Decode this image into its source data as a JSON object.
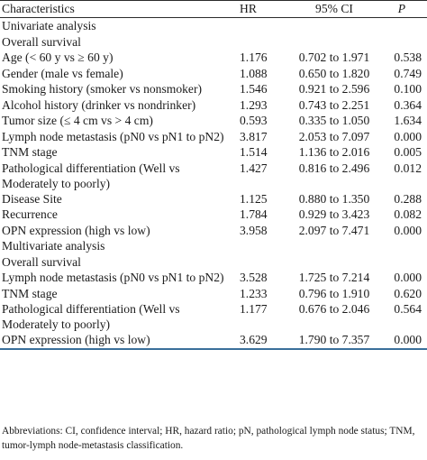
{
  "header": {
    "characteristics": "Characteristics",
    "hr": "HR",
    "ci": "95% CI",
    "p": "P"
  },
  "univariate": {
    "title": "Univariate analysis",
    "subtitle": "Overall survival",
    "rows": [
      {
        "label": "Age (< 60 y vs ≥ 60 y)",
        "hr": "1.176",
        "ci": "0.702 to 1.971",
        "p": "0.538"
      },
      {
        "label": "Gender (male vs female)",
        "hr": "1.088",
        "ci": "0.650 to 1.820",
        "p": "0.749"
      },
      {
        "label": "Smoking history (smoker vs nonsmoker)",
        "hr": "1.546",
        "ci": "0.921 to 2.596",
        "p": "0.100"
      },
      {
        "label": "Alcohol history (drinker vs nondrinker)",
        "hr": "1.293",
        "ci": "0.743 to 2.251",
        "p": "0.364"
      },
      {
        "label": "Tumor size (≤ 4 cm vs > 4 cm)",
        "hr": "0.593",
        "ci": "0.335 to 1.050",
        "p": "1.634"
      },
      {
        "label": "Lymph node metastasis (pN0 vs pN1 to pN2)",
        "hr": "3.817",
        "ci": "2.053 to 7.097",
        "p": "0.000"
      },
      {
        "label": "TNM stage",
        "hr": "1.514",
        "ci": "1.136 to 2.016",
        "p": "0.005"
      },
      {
        "label": "Pathological differentiation (Well vs Moderately to poorly)",
        "hr": "1.427",
        "ci": "0.816 to 2.496",
        "p": "0.012"
      },
      {
        "label": "Disease Site",
        "hr": "1.125",
        "ci": "0.880 to 1.350",
        "p": "0.288"
      },
      {
        "label": "Recurrence",
        "hr": "1.784",
        "ci": "0.929 to 3.423",
        "p": "0.082"
      },
      {
        "label": "OPN expression (high vs low)",
        "hr": "3.958",
        "ci": "2.097 to 7.471",
        "p": "0.000"
      }
    ]
  },
  "multivariate": {
    "title": "Multivariate analysis",
    "subtitle": "Overall survival",
    "rows": [
      {
        "label": "Lymph node metastasis (pN0 vs pN1 to pN2)",
        "hr": "3.528",
        "ci": "1.725 to 7.214",
        "p": "0.000"
      },
      {
        "label": "TNM stage",
        "hr": "1.233",
        "ci": "0.796 to 1.910",
        "p": "0.620"
      },
      {
        "label": "Pathological differentiation (Well vs Moderately to poorly)",
        "hr": "1.177",
        "ci": "0.676 to 2.046",
        "p": "0.564"
      },
      {
        "label": "OPN expression (high vs low)",
        "hr": "3.629",
        "ci": "1.790 to 7.357",
        "p": "0.000"
      }
    ]
  },
  "footnote": "Abbreviations: CI, confidence interval; HR, hazard ratio; pN, pathological lymph node status; TNM, tumor-lymph node-metastasis classification."
}
